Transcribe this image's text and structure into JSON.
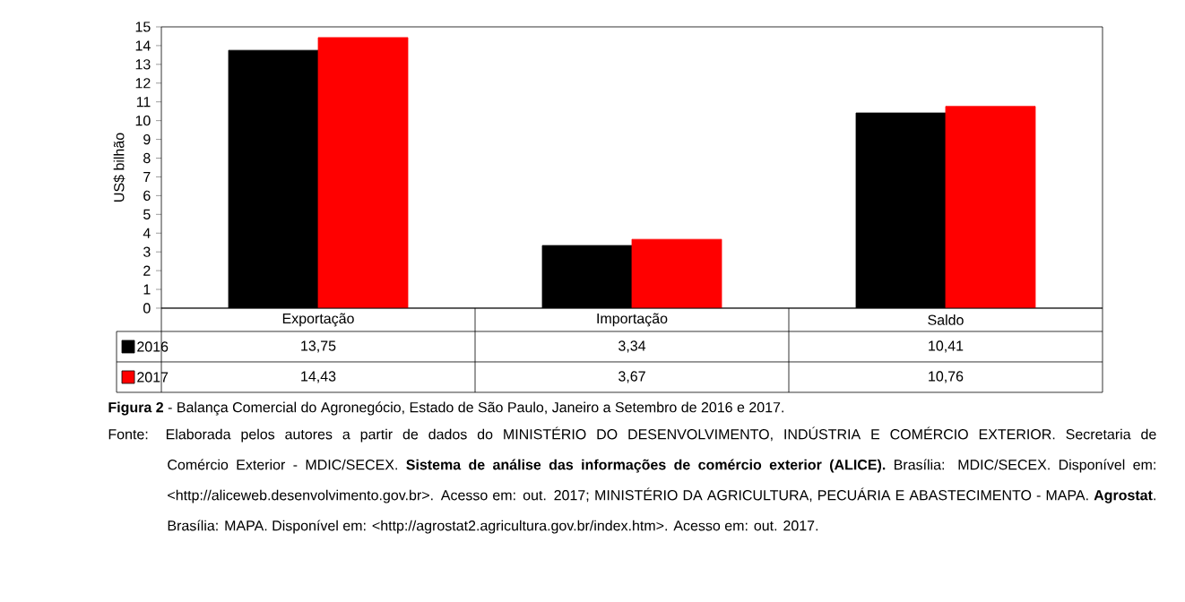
{
  "chart_data": {
    "type": "bar",
    "ylabel": "US$ bilhão",
    "categories": [
      "Exportação",
      "Importação",
      "Saldo"
    ],
    "series": [
      {
        "name": "2016",
        "color": "#000000",
        "values": [
          13.75,
          3.34,
          10.41
        ],
        "value_labels": [
          "13,75",
          "3,34",
          "10,41"
        ]
      },
      {
        "name": "2017",
        "color": "#ff0000",
        "values": [
          14.43,
          3.67,
          10.76
        ],
        "value_labels": [
          "14,43",
          "3,67",
          "10,76"
        ]
      }
    ],
    "ylim": [
      0,
      15
    ],
    "yticks": [
      0,
      1,
      2,
      3,
      4,
      5,
      6,
      7,
      8,
      9,
      10,
      11,
      12,
      13,
      14,
      15
    ],
    "grid": false,
    "legend": "left",
    "annotations": [
      "**Figura 2** - Balança Comercial do Agronegócio, Estado de São Paulo, Janeiro a Setembro de 2016 e 2017.",
      "Fonte: Elaborada pelos autores a partir de dados do MINISTÉRIO DO DESENVOLVIMENTO, INDÚSTRIA E COMÉRCIO EXTERIOR. Secretaria de Comércio Exterior - MDIC/SECEX. **Sistema de análise das informações de comércio exterior (ALICE).** Brasília: MDIC/SECEX. Disponível em: <http://aliceweb.desenvolvimento.gov.br>. Acesso em: out. 2017; MINISTÉRIO DA AGRICULTURA, PECUÁRIA E ABASTECIMENTO - MAPA. **Agrostat**. Brasília: MAPA. Disponível em: <http://agrostat2.agricultura.gov.br/index.htm>. Acesso em: out. 2017."
    ]
  }
}
